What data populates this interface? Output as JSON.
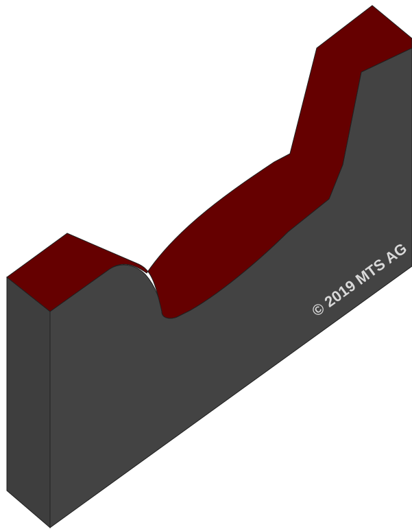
{
  "watermark": {
    "text": "© 2019 MTS AG"
  },
  "colors": {
    "background": "#ffffff",
    "top_face": "#650000",
    "front_face": "#434343",
    "side_face": "#3e3e3e",
    "edge": "#202020",
    "watermark": "#d9d9d9"
  }
}
